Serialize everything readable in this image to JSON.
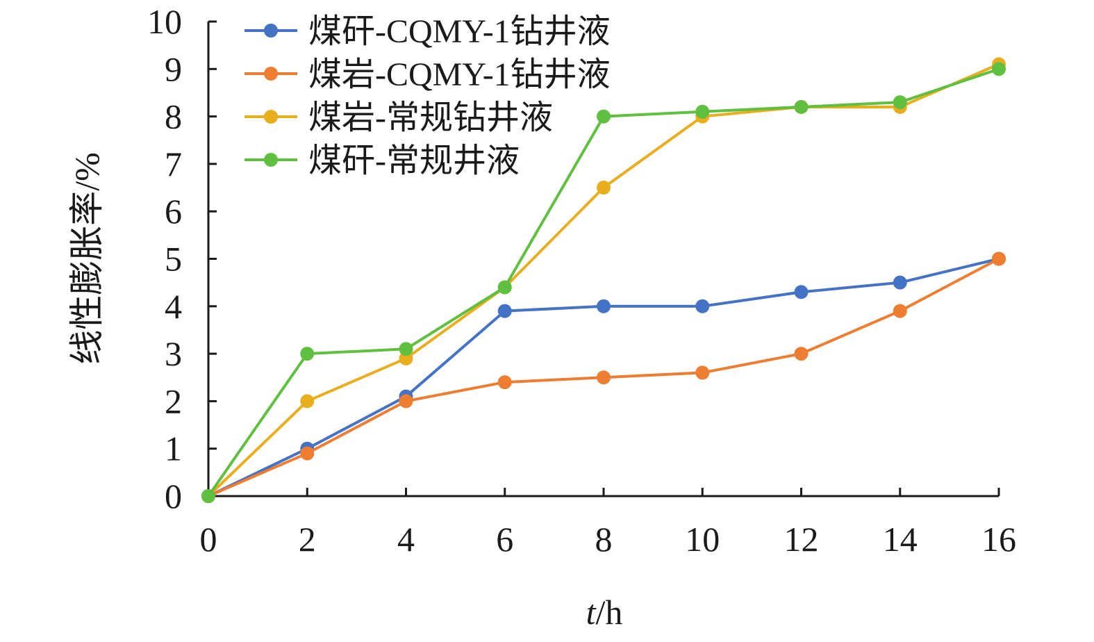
{
  "chart_data": {
    "type": "line",
    "title": "",
    "xlabel": {
      "italic": "t",
      "rest": "/h"
    },
    "ylabel": "线性膨胀率/%",
    "xlim": [
      0,
      16
    ],
    "ylim": [
      0,
      10
    ],
    "x_ticks": [
      0,
      2,
      4,
      6,
      8,
      10,
      12,
      14,
      16
    ],
    "y_ticks": [
      0,
      1,
      2,
      3,
      4,
      5,
      6,
      7,
      8,
      9,
      10
    ],
    "grid": false,
    "legend_position": "top-left",
    "x": [
      0,
      2,
      4,
      6,
      8,
      10,
      12,
      14,
      16
    ],
    "series": [
      {
        "name": "煤矸-CQMY-1钻井液",
        "color": "#4472C4",
        "values": [
          0,
          1.0,
          2.1,
          3.9,
          4.0,
          4.0,
          4.3,
          4.5,
          5.0
        ]
      },
      {
        "name": "煤岩-CQMY-1钻井液",
        "color": "#ED7D31",
        "values": [
          0,
          0.9,
          2.0,
          2.4,
          2.5,
          2.6,
          3.0,
          3.9,
          5.0
        ]
      },
      {
        "name": "煤岩-常规钻井液",
        "color": "#E8AE1E",
        "values": [
          0,
          2.0,
          2.9,
          4.4,
          6.5,
          8.0,
          8.2,
          8.2,
          9.1
        ]
      },
      {
        "name": "煤矸-常规井液",
        "color": "#5FBF3F",
        "values": [
          0,
          3.0,
          3.1,
          4.4,
          8.0,
          8.1,
          8.2,
          8.3,
          9.0
        ]
      }
    ]
  }
}
